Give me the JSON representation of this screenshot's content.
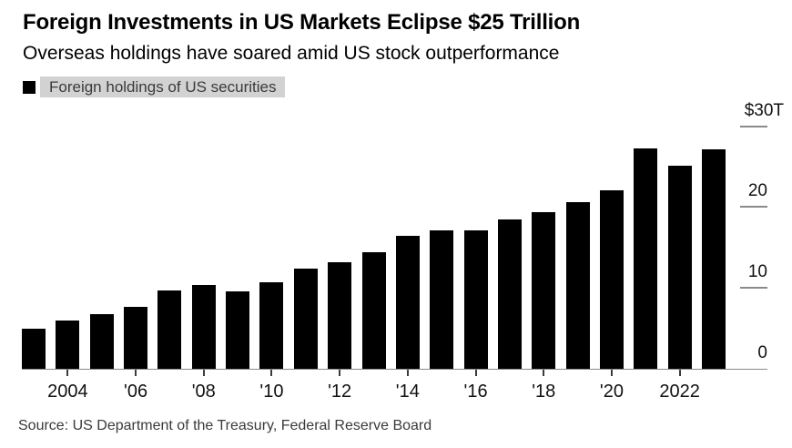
{
  "header": {
    "title": "Foreign Investments in US Markets Eclipse $25 Trillion",
    "subtitle": "Overseas holdings have soared amid US stock outperformance"
  },
  "legend": {
    "marker": "black-square-icon",
    "label": "Foreign holdings of US securities"
  },
  "chart_data": {
    "type": "bar",
    "title": "Foreign Investments in US Markets Eclipse $25 Trillion",
    "series_name": "Foreign holdings of US securities",
    "unit": "USD trillions",
    "x": [
      2003,
      2004,
      2005,
      2006,
      2007,
      2008,
      2009,
      2010,
      2011,
      2012,
      2013,
      2014,
      2015,
      2016,
      2017,
      2018,
      2019,
      2020,
      2021,
      2022,
      2023
    ],
    "values": [
      4.9,
      6.0,
      6.8,
      7.7,
      9.7,
      10.4,
      9.6,
      10.7,
      12.4,
      13.2,
      14.4,
      16.4,
      17.1,
      17.1,
      18.5,
      19.4,
      20.6,
      22.1,
      27.3,
      25.1,
      27.1
    ],
    "x_ticks": [
      {
        "year": 2004,
        "label": "2004"
      },
      {
        "year": 2006,
        "label": "'06"
      },
      {
        "year": 2008,
        "label": "'08"
      },
      {
        "year": 2010,
        "label": "'10"
      },
      {
        "year": 2012,
        "label": "'12"
      },
      {
        "year": 2014,
        "label": "'14"
      },
      {
        "year": 2016,
        "label": "'16"
      },
      {
        "year": 2018,
        "label": "'18"
      },
      {
        "year": 2020,
        "label": "'20"
      },
      {
        "year": 2022,
        "label": "2022"
      }
    ],
    "y_ticks": [
      {
        "value": 30,
        "label": "$30T"
      },
      {
        "value": 20,
        "label": "20"
      },
      {
        "value": 10,
        "label": "10"
      },
      {
        "value": 0,
        "label": "0"
      }
    ],
    "ylim": [
      0,
      30
    ],
    "grid": false,
    "legend_position": "top-left",
    "bar_color": "#000000"
  },
  "source": "Source: US Department of the Treasury, Federal Reserve Board",
  "colors": {
    "bar": "#000000",
    "legend_highlight": "#d2d2d2",
    "axis_line": "#8a8a8a",
    "x_tick": "#3c3c3c",
    "text": "#000000",
    "muted_text": "#3a3a3a"
  }
}
